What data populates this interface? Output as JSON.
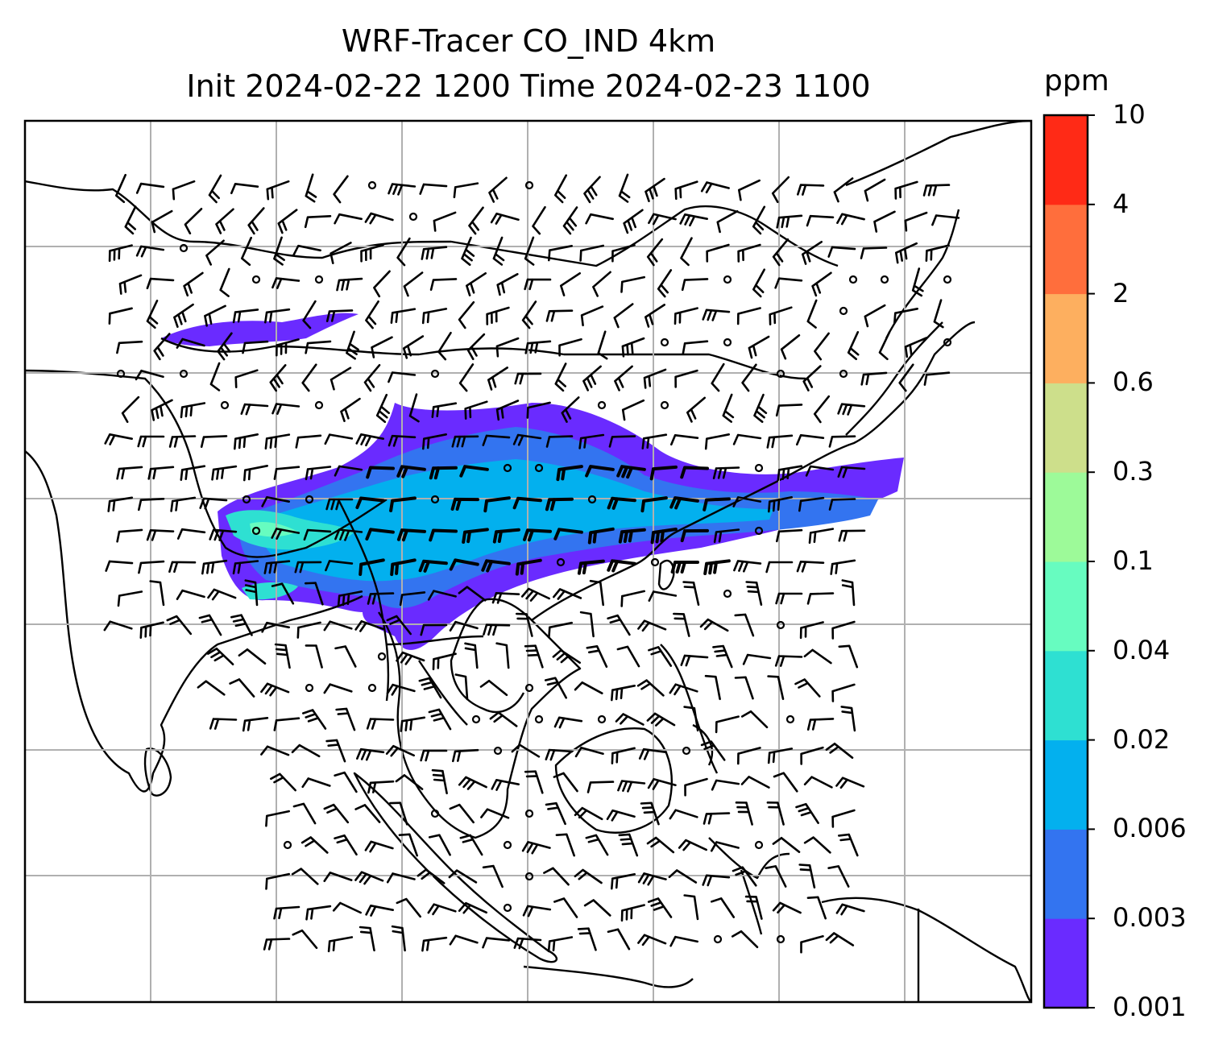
{
  "title": {
    "line1": "WRF-Tracer CO_IND 4km",
    "line2": "Init 2024-02-22 1200 Time 2024-02-23 1100"
  },
  "colorbar": {
    "unit": "ppm",
    "levels": [
      "0.001",
      "0.003",
      "0.006",
      "0.02",
      "0.04",
      "0.1",
      "0.3",
      "0.6",
      "2",
      "4",
      "10"
    ],
    "colors": [
      "#6a2bff",
      "#3374f0",
      "#03b0ee",
      "#2ee0d2",
      "#67fcc0",
      "#9dfa99",
      "#cddf8b",
      "#fdaf5f",
      "#ff6e3c",
      "#ff2a16"
    ]
  },
  "map": {
    "gridlines": true,
    "features": [
      "coastlines",
      "country-borders",
      "wind-barbs",
      "tracer-plume"
    ]
  }
}
